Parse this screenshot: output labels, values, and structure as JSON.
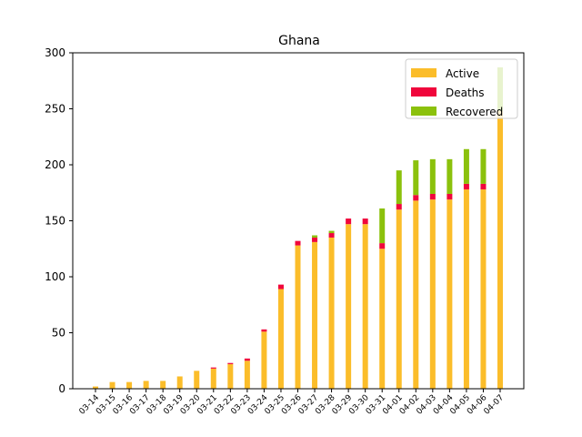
{
  "chart_data": {
    "type": "bar",
    "stacked": true,
    "title": "Ghana",
    "xlabel": "",
    "ylabel": "",
    "ylim": [
      0,
      300
    ],
    "yticks": [
      0,
      50,
      100,
      150,
      200,
      250,
      300
    ],
    "grid": false,
    "legend_position": "top-right",
    "categories": [
      "03-14",
      "03-15",
      "03-16",
      "03-17",
      "03-18",
      "03-19",
      "03-20",
      "03-21",
      "03-22",
      "03-23",
      "03-24",
      "03-25",
      "03-26",
      "03-27",
      "03-28",
      "03-29",
      "03-30",
      "03-31",
      "04-01",
      "04-02",
      "04-03",
      "04-04",
      "04-05",
      "04-06",
      "04-07"
    ],
    "series": [
      {
        "name": "Active",
        "color": "#fbbd2a",
        "values": [
          2,
          6,
          6,
          7,
          7,
          11,
          16,
          18,
          22,
          25,
          51,
          89,
          128,
          131,
          135,
          147,
          147,
          125,
          160,
          168,
          169,
          169,
          178,
          178,
          248
        ]
      },
      {
        "name": "Deaths",
        "color": "#f0063c",
        "values": [
          0,
          0,
          0,
          0,
          0,
          0,
          0,
          1,
          1,
          2,
          2,
          4,
          4,
          4,
          4,
          5,
          5,
          5,
          5,
          5,
          5,
          5,
          5,
          5,
          0
        ]
      },
      {
        "name": "Recovered",
        "color": "#8bc10c",
        "values": [
          0,
          0,
          0,
          0,
          0,
          0,
          0,
          0,
          0,
          0,
          0,
          0,
          0,
          2,
          2,
          0,
          0,
          31,
          30,
          31,
          31,
          31,
          31,
          31,
          39
        ]
      }
    ]
  }
}
